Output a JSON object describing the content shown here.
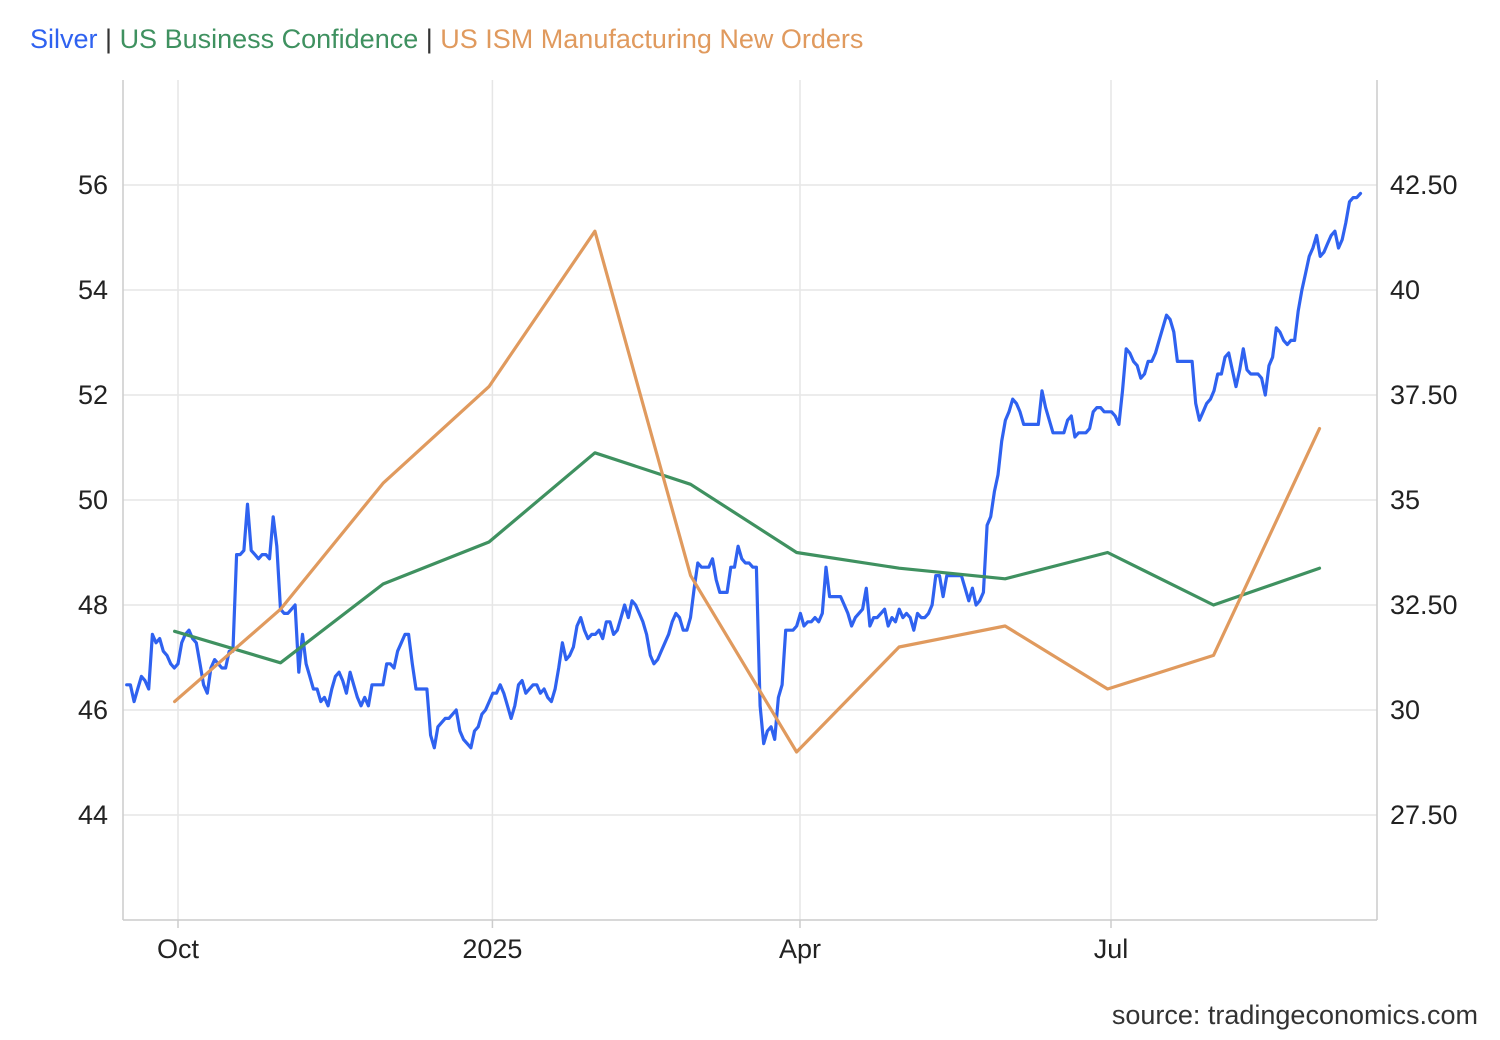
{
  "legend": {
    "series1": "Silver",
    "sep": "|",
    "series2": "US Business Confidence",
    "series3": "US ISM Manufacturing New Orders"
  },
  "source": "source: tradingeconomics.com",
  "chart_data": {
    "type": "line",
    "x_ticks": [
      "Oct",
      "2025",
      "Apr",
      "Jul"
    ],
    "x_tick_dates": [
      "2024-10-01",
      "2025-01-01",
      "2025-04-01",
      "2025-07-01"
    ],
    "left_axis": {
      "ticks": [
        "56",
        "54",
        "52",
        "50",
        "48",
        "46",
        "44"
      ],
      "range": [
        42,
        58
      ]
    },
    "right_axis": {
      "ticks": [
        "42.50",
        "40",
        "37.50",
        "35",
        "32.50",
        "30",
        "27.50"
      ],
      "range": [
        25,
        45
      ]
    },
    "series": [
      {
        "name": "Silver",
        "color": "#2f62f0",
        "axis": "right",
        "x_range": [
          "2024-09-16",
          "2025-09-12"
        ],
        "values": [
          30.6,
          30.6,
          30.2,
          30.5,
          30.8,
          30.7,
          30.5,
          31.8,
          31.6,
          31.7,
          31.4,
          31.3,
          31.1,
          31.0,
          31.1,
          31.6,
          31.8,
          31.9,
          31.7,
          31.6,
          31.1,
          30.6,
          30.4,
          31.0,
          31.2,
          31.1,
          31.0,
          31.0,
          31.4,
          31.4,
          33.7,
          33.7,
          33.8,
          34.9,
          33.8,
          33.7,
          33.6,
          33.7,
          33.7,
          33.6,
          34.6,
          33.9,
          32.4,
          32.3,
          32.3,
          32.4,
          32.5,
          30.9,
          31.8,
          31.1,
          30.8,
          30.5,
          30.5,
          30.2,
          30.3,
          30.1,
          30.5,
          30.8,
          30.9,
          30.7,
          30.4,
          30.9,
          30.6,
          30.3,
          30.1,
          30.3,
          30.1,
          30.6,
          30.6,
          30.6,
          30.6,
          31.1,
          31.1,
          31.0,
          31.4,
          31.6,
          31.8,
          31.8,
          31.1,
          30.5,
          30.5,
          30.5,
          30.5,
          29.4,
          29.1,
          29.6,
          29.7,
          29.8,
          29.8,
          29.9,
          30.0,
          29.5,
          29.3,
          29.2,
          29.1,
          29.5,
          29.6,
          29.9,
          30.0,
          30.2,
          30.4,
          30.4,
          30.6,
          30.4,
          30.1,
          29.8,
          30.1,
          30.6,
          30.7,
          30.4,
          30.5,
          30.6,
          30.6,
          30.4,
          30.5,
          30.3,
          30.2,
          30.5,
          31.0,
          31.6,
          31.2,
          31.3,
          31.5,
          32.0,
          32.2,
          31.9,
          31.7,
          31.8,
          31.8,
          31.9,
          31.7,
          32.1,
          32.1,
          31.8,
          31.9,
          32.2,
          32.5,
          32.2,
          32.6,
          32.5,
          32.3,
          32.1,
          31.8,
          31.3,
          31.1,
          31.2,
          31.4,
          31.6,
          31.8,
          32.1,
          32.3,
          32.2,
          31.9,
          31.9,
          32.2,
          32.9,
          33.5,
          33.4,
          33.4,
          33.4,
          33.6,
          33.1,
          32.8,
          32.8,
          32.8,
          33.4,
          33.4,
          33.9,
          33.6,
          33.5,
          33.5,
          33.4,
          33.4,
          30.1,
          29.2,
          29.5,
          29.6,
          29.3,
          30.3,
          30.6,
          31.9,
          31.9,
          31.9,
          32.0,
          32.3,
          32.0,
          32.1,
          32.1,
          32.2,
          32.1,
          32.3,
          33.4,
          32.7,
          32.7,
          32.7,
          32.7,
          32.5,
          32.3,
          32.0,
          32.2,
          32.3,
          32.4,
          32.9,
          32.0,
          32.2,
          32.2,
          32.3,
          32.4,
          32.0,
          32.2,
          32.1,
          32.4,
          32.2,
          32.3,
          32.2,
          31.9,
          32.3,
          32.2,
          32.2,
          32.3,
          32.5,
          33.2,
          33.2,
          32.7,
          33.2,
          33.2,
          33.2,
          33.2,
          33.2,
          32.9,
          32.6,
          32.9,
          32.5,
          32.6,
          32.8,
          34.4,
          34.6,
          35.2,
          35.6,
          36.4,
          36.9,
          37.1,
          37.4,
          37.3,
          37.1,
          36.8,
          36.8,
          36.8,
          36.8,
          36.8,
          37.6,
          37.2,
          36.9,
          36.6,
          36.6,
          36.6,
          36.6,
          36.9,
          37.0,
          36.5,
          36.6,
          36.6,
          36.6,
          36.7,
          37.1,
          37.2,
          37.2,
          37.1,
          37.1,
          37.1,
          37.0,
          36.8,
          37.6,
          38.6,
          38.5,
          38.3,
          38.2,
          37.9,
          38.0,
          38.3,
          38.3,
          38.5,
          38.8,
          39.1,
          39.4,
          39.3,
          39.0,
          38.3,
          38.3,
          38.3,
          38.3,
          38.3,
          37.3,
          36.9,
          37.1,
          37.3,
          37.4,
          37.6,
          38.0,
          38.0,
          38.4,
          38.5,
          38.1,
          37.7,
          38.1,
          38.6,
          38.1,
          38.0,
          38.0,
          38.0,
          37.9,
          37.5,
          38.2,
          38.4,
          39.1,
          39.0,
          38.8,
          38.7,
          38.8,
          38.8,
          39.5,
          40.0,
          40.4,
          40.8,
          41.0,
          41.3,
          40.8,
          40.9,
          41.1,
          41.3,
          41.4,
          41.0,
          41.2,
          41.6,
          42.1,
          42.2,
          42.2,
          42.3
        ]
      },
      {
        "name": "US Business Confidence",
        "color": "#3f9160",
        "axis": "left",
        "dates": [
          "2024-09-30",
          "2024-10-31",
          "2024-11-30",
          "2024-12-31",
          "2025-01-31",
          "2025-02-28",
          "2025-03-31",
          "2025-04-30",
          "2025-05-31",
          "2025-06-30",
          "2025-07-31",
          "2025-08-31"
        ],
        "values": [
          47.5,
          46.9,
          48.4,
          49.2,
          50.9,
          50.3,
          49.0,
          48.7,
          48.5,
          49.0,
          48.0,
          48.7
        ]
      },
      {
        "name": "US ISM Manufacturing New Orders",
        "color": "#e09a5e",
        "axis": "right",
        "dates": [
          "2024-09-30",
          "2024-10-31",
          "2024-11-30",
          "2024-12-31",
          "2025-01-31",
          "2025-02-28",
          "2025-03-31",
          "2025-04-30",
          "2025-05-31",
          "2025-06-30",
          "2025-07-31",
          "2025-08-31"
        ],
        "values": [
          30.2,
          32.4,
          35.4,
          37.7,
          41.4,
          33.2,
          29.0,
          31.5,
          32.0,
          30.5,
          31.3,
          36.7
        ]
      }
    ]
  }
}
